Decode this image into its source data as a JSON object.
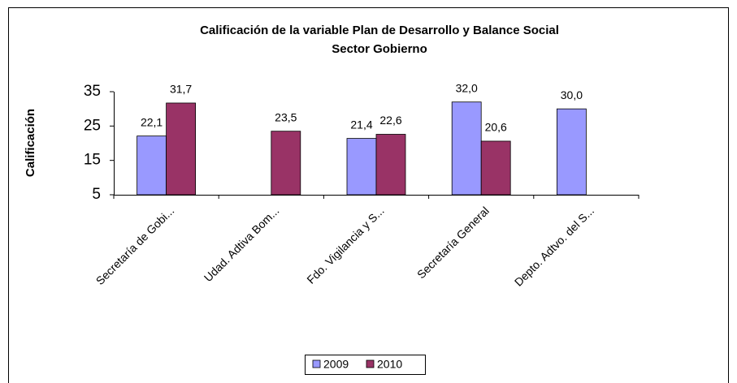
{
  "chart_data": {
    "type": "bar",
    "title": "Calificación de la variable Plan de Desarrollo y Balance Social",
    "subtitle": "Sector Gobierno",
    "y_label": "Calificación",
    "categories": [
      "Secretaría de Gobi...",
      "Udad. Adtiva Bom...",
      "Fdo. Vigilancia y S...",
      "Secretaría General",
      "Depto. Adtvo. del S..."
    ],
    "series": [
      {
        "name": "2009",
        "color": "#9999ff",
        "values": [
          22.1,
          null,
          21.4,
          32.0,
          30.0
        ],
        "value_labels": [
          "22,1",
          null,
          "21,4",
          "32,0",
          "30,0"
        ]
      },
      {
        "name": "2010",
        "color": "#993366",
        "values": [
          31.7,
          23.5,
          22.6,
          20.6,
          null
        ],
        "value_labels": [
          "31,7",
          "23,5",
          "22,6",
          "20,6",
          null
        ]
      }
    ],
    "ylim": [
      5,
      35
    ],
    "yticks": [
      5,
      15,
      25,
      35
    ],
    "legend": "bottom"
  }
}
